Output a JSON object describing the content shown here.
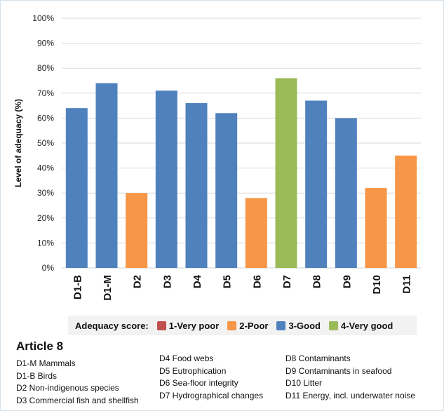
{
  "chart_data": {
    "type": "bar",
    "title": "",
    "xlabel": "",
    "ylabel": "Level of adequacy (%)",
    "ylim": [
      0,
      100
    ],
    "yticks": [
      "0%",
      "10%",
      "20%",
      "30%",
      "40%",
      "50%",
      "60%",
      "70%",
      "80%",
      "90%",
      "100%"
    ],
    "grid": true,
    "categories": [
      "D1-B",
      "D1-M",
      "D2",
      "D3",
      "D4",
      "D5",
      "D6",
      "D7",
      "D8",
      "D9",
      "D10",
      "D11"
    ],
    "values": [
      64,
      74,
      30,
      71,
      66,
      62,
      28,
      76,
      67,
      60,
      32,
      45
    ],
    "scores": [
      "3-Good",
      "3-Good",
      "2-Poor",
      "3-Good",
      "3-Good",
      "3-Good",
      "2-Poor",
      "4-Very good",
      "3-Good",
      "3-Good",
      "2-Poor",
      "2-Poor"
    ],
    "legend": {
      "title": "Adequacy score:",
      "placement": "bottom",
      "entries": [
        {
          "label": "1-Very poor",
          "color": "#c0504d"
        },
        {
          "label": "2-Poor",
          "color": "#f79646"
        },
        {
          "label": "3-Good",
          "color": "#4f81bd"
        },
        {
          "label": "4-Very good",
          "color": "#9bbb59"
        }
      ]
    }
  },
  "notes": {
    "heading": "Article 8",
    "col1": [
      "D1-M Mammals",
      "D1-B Birds",
      "D2 Non-indigenous  species",
      "D3 Commercial fish  and shellfish"
    ],
    "col2": [
      "D4 Food  webs",
      "D5 Eutrophication",
      "D6 Sea-floor  integrity",
      "D7 Hydrographical changes"
    ],
    "col3": [
      "D8 Contaminants",
      "D9 Contaminants  in seafood",
      "D10 Litter",
      "D11 Energy, incl. underwater noise"
    ]
  }
}
